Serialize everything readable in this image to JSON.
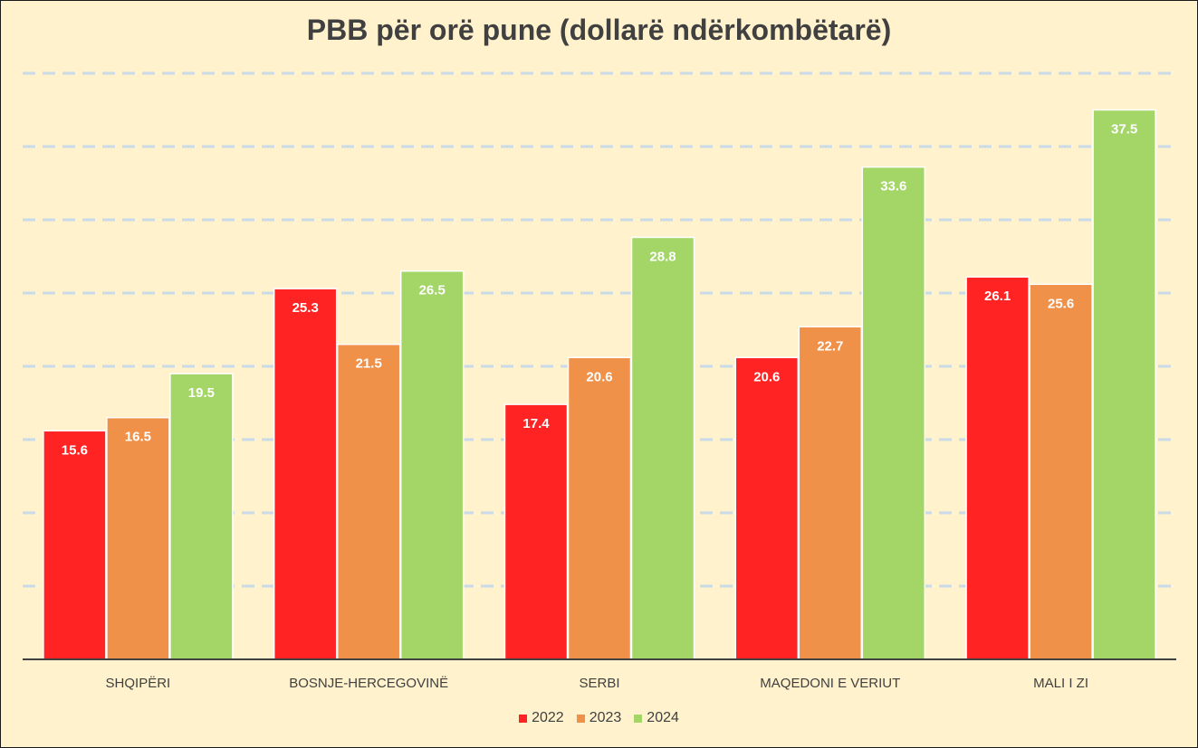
{
  "colors": {
    "background": "#fff2cc",
    "gridline": "#c9dbe8",
    "axis": "#404040",
    "series": [
      "#ff2323",
      "#f0914a",
      "#a3d567"
    ]
  },
  "chart_data": {
    "type": "bar",
    "title": "PBB për orë pune (dollarë ndërkombëtarë)",
    "xlabel": "",
    "ylabel": "",
    "ylim": [
      0,
      40
    ],
    "grid": true,
    "legend_position": "bottom",
    "categories": [
      "SHQIPËRI",
      "BOSNJE-HERCEGOVINË",
      "SERBI",
      "MAQEDONI E VERIUT",
      "MALI I ZI"
    ],
    "series": [
      {
        "name": "2022",
        "values": [
          15.6,
          25.3,
          17.4,
          20.6,
          26.1
        ]
      },
      {
        "name": "2023",
        "values": [
          16.5,
          21.5,
          20.6,
          22.7,
          25.6
        ]
      },
      {
        "name": "2024",
        "values": [
          19.5,
          26.5,
          28.8,
          33.6,
          37.5
        ]
      }
    ]
  }
}
